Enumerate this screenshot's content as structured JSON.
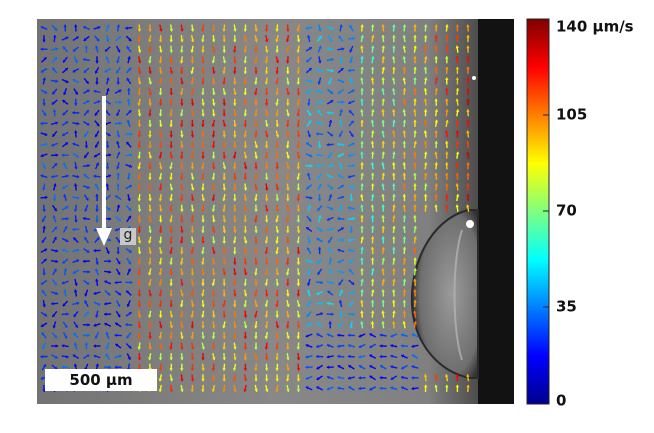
{
  "colorbar": {
    "ticks": [
      "140 µm/s",
      "105",
      "70",
      "35",
      "0"
    ],
    "min": 0,
    "max": 140,
    "colormap": "jet"
  },
  "annotations": {
    "gravity_label": "g",
    "scale_bar_label": "500 µm"
  },
  "colors": {
    "background_metal": "#7d7d7d",
    "droplet_edge": "#2a2a2a",
    "arrow_low": "#00008f",
    "arrow_high": "#800000"
  }
}
